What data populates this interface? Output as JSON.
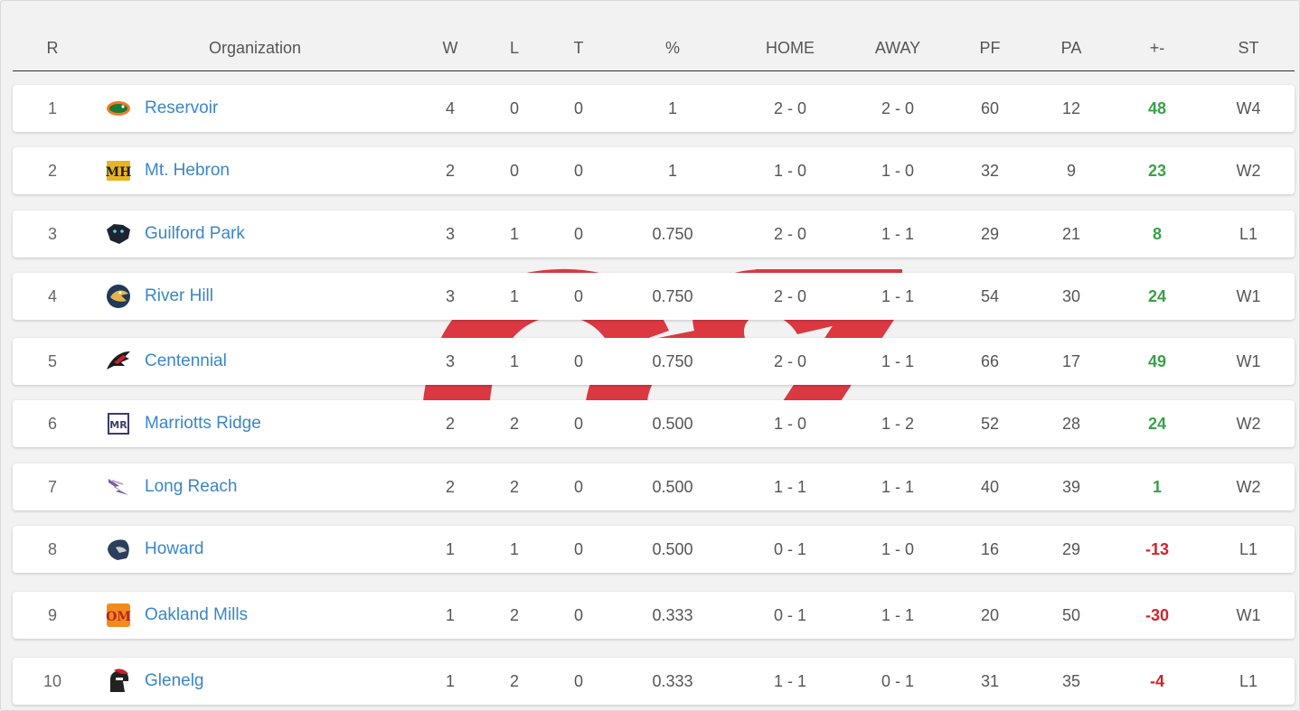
{
  "colors": {
    "link": "#3a86c8",
    "positive": "#3aa04a",
    "negative": "#d0242a",
    "watermark": "#d9242f"
  },
  "columns": {
    "rank": "R",
    "organization": "Organization",
    "wins": "W",
    "losses": "L",
    "ties": "T",
    "pct": "%",
    "home": "HOME",
    "away": "AWAY",
    "pf": "PF",
    "pa": "PA",
    "diff": "+-",
    "streak": "ST"
  },
  "rows": [
    {
      "rank": "1",
      "team": "Reservoir",
      "logo_icon": "gator-logo-icon",
      "w": "4",
      "l": "0",
      "t": "0",
      "pct": "1",
      "home": "2 - 0",
      "away": "2 - 0",
      "pf": "60",
      "pa": "12",
      "diff": "48",
      "diff_sign": "pos",
      "st": "W4"
    },
    {
      "rank": "2",
      "team": "Mt. Hebron",
      "logo_icon": "mh-monogram-logo-icon",
      "w": "2",
      "l": "0",
      "t": "0",
      "pct": "1",
      "home": "1 - 0",
      "away": "1 - 0",
      "pf": "32",
      "pa": "9",
      "diff": "23",
      "diff_sign": "pos",
      "st": "W2"
    },
    {
      "rank": "3",
      "team": "Guilford Park",
      "logo_icon": "panther-logo-icon",
      "w": "3",
      "l": "1",
      "t": "0",
      "pct": "0.750",
      "home": "2 - 0",
      "away": "1 - 1",
      "pf": "29",
      "pa": "21",
      "diff": "8",
      "diff_sign": "pos",
      "st": "L1"
    },
    {
      "rank": "4",
      "team": "River Hill",
      "logo_icon": "hawk-logo-icon",
      "w": "3",
      "l": "1",
      "t": "0",
      "pct": "0.750",
      "home": "2 - 0",
      "away": "1 - 1",
      "pf": "54",
      "pa": "30",
      "diff": "24",
      "diff_sign": "pos",
      "st": "W1"
    },
    {
      "rank": "5",
      "team": "Centennial",
      "logo_icon": "eagle-logo-icon",
      "w": "3",
      "l": "1",
      "t": "0",
      "pct": "0.750",
      "home": "2 - 0",
      "away": "1 - 1",
      "pf": "66",
      "pa": "17",
      "diff": "49",
      "diff_sign": "pos",
      "st": "W1"
    },
    {
      "rank": "6",
      "team": "Marriotts Ridge",
      "logo_icon": "mr-monogram-logo-icon",
      "w": "2",
      "l": "2",
      "t": "0",
      "pct": "0.500",
      "home": "1 - 0",
      "away": "1 - 2",
      "pf": "52",
      "pa": "28",
      "diff": "24",
      "diff_sign": "pos",
      "st": "W2"
    },
    {
      "rank": "7",
      "team": "Long Reach",
      "logo_icon": "lightning-logo-icon",
      "w": "2",
      "l": "2",
      "t": "0",
      "pct": "0.500",
      "home": "1 - 1",
      "away": "1 - 1",
      "pf": "40",
      "pa": "39",
      "diff": "1",
      "diff_sign": "pos",
      "st": "W2"
    },
    {
      "rank": "8",
      "team": "Howard",
      "logo_icon": "lion-logo-icon",
      "w": "1",
      "l": "1",
      "t": "0",
      "pct": "0.500",
      "home": "0 - 1",
      "away": "1 - 0",
      "pf": "16",
      "pa": "29",
      "diff": "-13",
      "diff_sign": "neg",
      "st": "L1"
    },
    {
      "rank": "9",
      "team": "Oakland Mills",
      "logo_icon": "om-monogram-logo-icon",
      "w": "1",
      "l": "2",
      "t": "0",
      "pct": "0.333",
      "home": "0 - 1",
      "away": "1 - 1",
      "pf": "20",
      "pa": "50",
      "diff": "-30",
      "diff_sign": "neg",
      "st": "W1"
    },
    {
      "rank": "10",
      "team": "Glenelg",
      "logo_icon": "gladiator-logo-icon",
      "w": "1",
      "l": "2",
      "t": "0",
      "pct": "0.333",
      "home": "1 - 1",
      "away": "0 - 1",
      "pf": "31",
      "pa": "35",
      "diff": "-4",
      "diff_sign": "neg",
      "st": "L1"
    }
  ]
}
